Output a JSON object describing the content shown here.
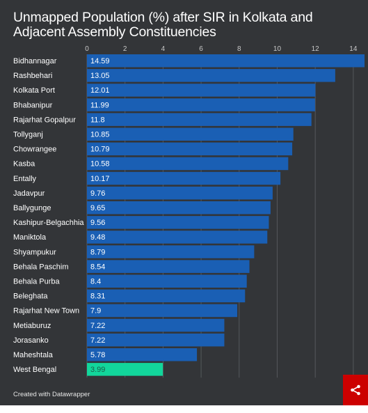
{
  "colors": {
    "background": "#333538",
    "bar": "#1a5fb4",
    "highlight_bar": "#12d69b",
    "grid": "#55585c",
    "text": "#ffffff",
    "axis_text": "#c8c8c8",
    "share_button": "#cc0000"
  },
  "footer": {
    "credit": "Created with Datawrapper"
  },
  "share": {
    "icon": "share-icon"
  },
  "chart_data": {
    "type": "bar",
    "orientation": "horizontal",
    "title": "Unmapped Population (%) after SIR in Kolkata and Adjacent Assembly Constituencies",
    "xlim": [
      0,
      14.59
    ],
    "xticks": [
      0,
      2,
      4,
      6,
      8,
      10,
      12,
      14
    ],
    "grid": true,
    "value_labels": true,
    "highlight_category": "West Bengal",
    "categories": [
      "Bidhannagar",
      "Rashbehari",
      "Kolkata Port",
      "Bhabanipur",
      "Rajarhat Gopalpur",
      "Tollyganj",
      "Chowrangee",
      "Kasba",
      "Entally",
      "Jadavpur",
      "Ballygunge",
      "Kashipur-Belgachhia",
      "Maniktola",
      "Shyampukur",
      "Behala Paschim",
      "Behala Purba",
      "Beleghata",
      "Rajarhat New Town",
      "Metiaburuz",
      "Jorasanko",
      "Maheshtala",
      "West Bengal"
    ],
    "values": [
      14.59,
      13.05,
      12.01,
      11.99,
      11.8,
      10.85,
      10.79,
      10.58,
      10.17,
      9.76,
      9.65,
      9.56,
      9.48,
      8.79,
      8.54,
      8.4,
      8.31,
      7.9,
      7.22,
      7.22,
      5.78,
      3.99
    ]
  }
}
